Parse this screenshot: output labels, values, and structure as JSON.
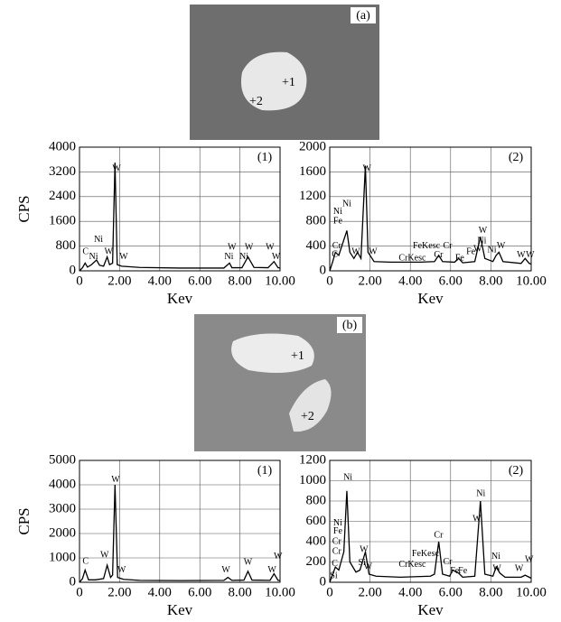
{
  "images": [
    {
      "label": "(a)",
      "points": [
        "+1",
        "+2"
      ]
    },
    {
      "label": "(b)",
      "points": [
        "+1",
        "+2"
      ]
    }
  ],
  "chart_data": [
    {
      "type": "line",
      "panel": "(1)",
      "ylabel": "CPS",
      "xlabel": "Kev",
      "xlim": [
        0,
        10
      ],
      "ylim": [
        0,
        4000
      ],
      "xticks": [
        0,
        {
          "value": 2,
          "label": "2.00"
        },
        {
          "value": 4,
          "label": "4.00"
        },
        {
          "value": 6,
          "label": "6.00"
        },
        {
          "value": 8,
          "label": "8.00"
        },
        {
          "value": 10,
          "label": "10.00"
        }
      ],
      "yticks": [
        0,
        800,
        1600,
        2400,
        3200,
        4000
      ],
      "grid": true,
      "series": [
        {
          "color": "#000000",
          "x": [
            0,
            0.15,
            0.28,
            0.4,
            0.6,
            0.85,
            1.0,
            1.2,
            1.38,
            1.5,
            1.65,
            1.77,
            1.88,
            2.1,
            3.0,
            5.0,
            7.2,
            7.48,
            7.6,
            8.1,
            8.4,
            8.7,
            9.4,
            9.7,
            9.9,
            10
          ],
          "y": [
            0,
            100,
            250,
            120,
            200,
            350,
            180,
            150,
            450,
            200,
            250,
            3500,
            200,
            150,
            110,
            90,
            90,
            250,
            100,
            100,
            450,
            110,
            100,
            300,
            100,
            90
          ]
        }
      ],
      "annotations": [
        {
          "text": "C",
          "x": 0.3,
          "y": 600
        },
        {
          "text": "Ni",
          "x": 0.95,
          "y": 1000
        },
        {
          "text": "Ni",
          "x": 0.7,
          "y": 450
        },
        {
          "text": "W",
          "x": 1.45,
          "y": 600
        },
        {
          "text": "W",
          "x": 1.85,
          "y": 3300
        },
        {
          "text": "W",
          "x": 2.2,
          "y": 450
        },
        {
          "text": "Ni",
          "x": 7.45,
          "y": 450
        },
        {
          "text": "W",
          "x": 7.6,
          "y": 750
        },
        {
          "text": "Ni",
          "x": 8.2,
          "y": 450
        },
        {
          "text": "W",
          "x": 8.45,
          "y": 750
        },
        {
          "text": "W",
          "x": 9.5,
          "y": 750
        },
        {
          "text": "W",
          "x": 9.8,
          "y": 450
        }
      ]
    },
    {
      "type": "line",
      "panel": "(2)",
      "xlabel": "Kev",
      "xlim": [
        0,
        10
      ],
      "ylim": [
        0,
        2000
      ],
      "xticks": [
        0,
        {
          "value": 2,
          "label": "2.00"
        },
        {
          "value": 4,
          "label": "4.00"
        },
        {
          "value": 6,
          "label": "6.00"
        },
        {
          "value": 8,
          "label": "8.00"
        },
        {
          "value": 10,
          "label": "10.00"
        }
      ],
      "yticks": [
        0,
        400,
        800,
        1200,
        1600,
        2000
      ],
      "grid": true,
      "series": [
        {
          "color": "#000000",
          "x": [
            0,
            0.15,
            0.28,
            0.45,
            0.7,
            0.85,
            1.0,
            1.2,
            1.38,
            1.55,
            1.77,
            1.9,
            2.2,
            3.0,
            4.5,
            5.2,
            5.41,
            5.6,
            6.2,
            6.4,
            6.6,
            7.2,
            7.48,
            7.7,
            8.1,
            8.26,
            8.4,
            8.6,
            9.5,
            9.7,
            9.9,
            10
          ],
          "y": [
            0,
            150,
            300,
            250,
            500,
            650,
            300,
            200,
            300,
            200,
            1700,
            300,
            150,
            140,
            140,
            150,
            250,
            150,
            140,
            200,
            130,
            150,
            550,
            200,
            150,
            250,
            300,
            150,
            120,
            200,
            120,
            110
          ]
        }
      ],
      "annotations": [
        {
          "text": "C",
          "x": 0.25,
          "y": 260
        },
        {
          "text": "Cr",
          "x": 0.35,
          "y": 400
        },
        {
          "text": "Fe",
          "x": 0.4,
          "y": 800
        },
        {
          "text": "Ni",
          "x": 0.4,
          "y": 950
        },
        {
          "text": "Ni",
          "x": 0.85,
          "y": 1080
        },
        {
          "text": "W",
          "x": 1.3,
          "y": 300
        },
        {
          "text": "W",
          "x": 1.85,
          "y": 1650
        },
        {
          "text": "W",
          "x": 2.15,
          "y": 300
        },
        {
          "text": "CrKesc",
          "x": 4.1,
          "y": 200
        },
        {
          "text": "FeKesc",
          "x": 4.8,
          "y": 400
        },
        {
          "text": "Cr",
          "x": 5.4,
          "y": 250
        },
        {
          "text": "Cr",
          "x": 5.85,
          "y": 400
        },
        {
          "text": "Fe",
          "x": 6.45,
          "y": 200
        },
        {
          "text": "Fe",
          "x": 7.0,
          "y": 300
        },
        {
          "text": "W",
          "x": 7.6,
          "y": 650
        },
        {
          "text": "Ni",
          "x": 7.55,
          "y": 480
        },
        {
          "text": "W",
          "x": 7.35,
          "y": 350
        },
        {
          "text": "Ni",
          "x": 8.05,
          "y": 330
        },
        {
          "text": "W",
          "x": 8.5,
          "y": 400
        },
        {
          "text": "W",
          "x": 9.5,
          "y": 250
        },
        {
          "text": "W",
          "x": 9.95,
          "y": 250
        }
      ]
    },
    {
      "type": "line",
      "panel": "(1)",
      "ylabel": "CPS",
      "xlabel": "Kev",
      "xlim": [
        0,
        10
      ],
      "ylim": [
        0,
        5000
      ],
      "xticks": [
        0,
        {
          "value": 2,
          "label": "2.00"
        },
        {
          "value": 4,
          "label": "4.00"
        },
        {
          "value": 6,
          "label": "6.00"
        },
        {
          "value": 8,
          "label": "8.00"
        },
        {
          "value": 10,
          "label": "10.00"
        }
      ],
      "yticks": [
        0,
        1000,
        2000,
        3000,
        4000,
        5000
      ],
      "grid": true,
      "series": [
        {
          "color": "#000000",
          "x": [
            0,
            0.15,
            0.28,
            0.45,
            0.8,
            1.2,
            1.38,
            1.55,
            1.65,
            1.77,
            1.9,
            2.2,
            3.0,
            5.0,
            7.2,
            7.4,
            7.6,
            8.2,
            8.4,
            8.6,
            9.5,
            9.7,
            9.9,
            10
          ],
          "y": [
            0,
            150,
            500,
            100,
            100,
            150,
            700,
            200,
            300,
            4000,
            200,
            120,
            80,
            70,
            80,
            200,
            80,
            90,
            450,
            90,
            80,
            350,
            80,
            70
          ]
        }
      ],
      "annotations": [
        {
          "text": "C",
          "x": 0.3,
          "y": 850
        },
        {
          "text": "W",
          "x": 1.25,
          "y": 1100
        },
        {
          "text": "W",
          "x": 1.8,
          "y": 4200
        },
        {
          "text": "W",
          "x": 2.1,
          "y": 500
        },
        {
          "text": "W",
          "x": 7.3,
          "y": 500
        },
        {
          "text": "W",
          "x": 8.4,
          "y": 800
        },
        {
          "text": "W",
          "x": 9.6,
          "y": 500
        },
        {
          "text": "W",
          "x": 9.9,
          "y": 1050
        }
      ]
    },
    {
      "type": "line",
      "panel": "(2)",
      "xlabel": "Kev",
      "xlim": [
        0,
        10
      ],
      "ylim": [
        0,
        1200
      ],
      "xticks": [
        0,
        {
          "value": 2,
          "label": "2.00"
        },
        {
          "value": 4,
          "label": "4.00"
        },
        {
          "value": 6,
          "label": "6.00"
        },
        {
          "value": 8,
          "label": "8.00"
        },
        {
          "value": 10,
          "label": "10.00"
        }
      ],
      "yticks": [
        0,
        200,
        400,
        600,
        800,
        1000,
        1200
      ],
      "grid": true,
      "series": [
        {
          "color": "#000000",
          "x": [
            0,
            0.15,
            0.28,
            0.45,
            0.7,
            0.85,
            1.0,
            1.3,
            1.5,
            1.77,
            1.95,
            2.3,
            3.5,
            5.0,
            5.2,
            5.41,
            5.6,
            5.95,
            6.1,
            6.4,
            6.6,
            7.2,
            7.48,
            7.7,
            8.1,
            8.26,
            8.45,
            8.7,
            9.5,
            9.7,
            9.9,
            10
          ],
          "y": [
            0,
            80,
            150,
            120,
            300,
            900,
            200,
            100,
            120,
            300,
            80,
            60,
            50,
            60,
            80,
            400,
            80,
            60,
            120,
            90,
            50,
            60,
            800,
            80,
            60,
            150,
            90,
            50,
            50,
            70,
            50,
            40
          ]
        }
      ],
      "annotations": [
        {
          "text": "Si",
          "x": 0.2,
          "y": 60
        },
        {
          "text": "C",
          "x": 0.25,
          "y": 180
        },
        {
          "text": "Cr",
          "x": 0.35,
          "y": 300
        },
        {
          "text": "Cr",
          "x": 0.35,
          "y": 400
        },
        {
          "text": "Fe",
          "x": 0.4,
          "y": 500
        },
        {
          "text": "Ni",
          "x": 0.4,
          "y": 580
        },
        {
          "text": "Ni",
          "x": 0.9,
          "y": 1030
        },
        {
          "text": "Si",
          "x": 1.6,
          "y": 190
        },
        {
          "text": "W",
          "x": 1.7,
          "y": 320
        },
        {
          "text": "W",
          "x": 1.9,
          "y": 150
        },
        {
          "text": "CrKesc",
          "x": 4.1,
          "y": 170
        },
        {
          "text": "FeKesc",
          "x": 4.75,
          "y": 280
        },
        {
          "text": "Cr",
          "x": 5.4,
          "y": 460
        },
        {
          "text": "Cr",
          "x": 5.85,
          "y": 200
        },
        {
          "text": "Fe",
          "x": 6.2,
          "y": 110
        },
        {
          "text": "Fe",
          "x": 6.6,
          "y": 110
        },
        {
          "text": "Ni",
          "x": 7.5,
          "y": 870
        },
        {
          "text": "W",
          "x": 7.3,
          "y": 620
        },
        {
          "text": "Ni",
          "x": 8.25,
          "y": 250
        },
        {
          "text": "W",
          "x": 8.3,
          "y": 130
        },
        {
          "text": "W",
          "x": 9.4,
          "y": 130
        },
        {
          "text": "W",
          "x": 9.9,
          "y": 220
        }
      ]
    }
  ]
}
